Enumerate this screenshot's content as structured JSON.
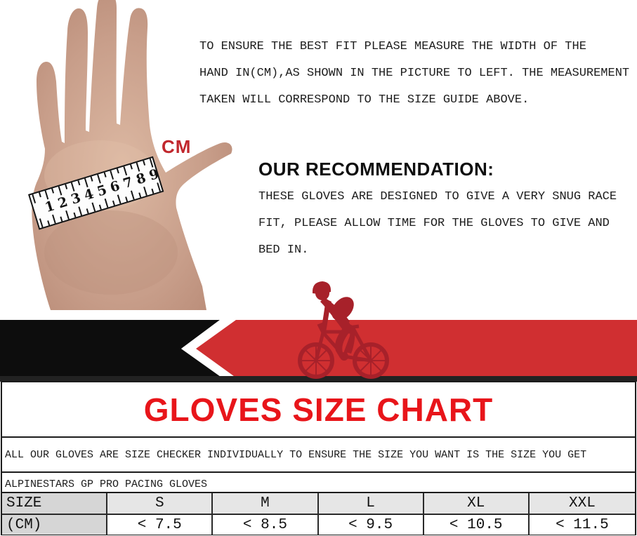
{
  "intro": {
    "lines": [
      "TO ENSURE THE BEST FIT PLEASE MEASURE THE WIDTH OF THE",
      "HAND IN(CM),AS SHOWN IN THE PICTURE TO LEFT. THE MEASUREMENT",
      "TAKEN WILL CORRESPOND TO THE SIZE GUIDE ABOVE."
    ]
  },
  "recommendation": {
    "heading": "OUR RECOMMENDATION:",
    "lines": [
      "THESE GLOVES ARE DESIGNED TO GIVE A VERY SNUG RACE",
      "FIT, PLEASE ALLOW TIME FOR THE GLOVES TO GIVE AND",
      "BED IN."
    ]
  },
  "hand": {
    "cm_label": "CM",
    "ruler_numbers": [
      "1",
      "2",
      "3",
      "4",
      "5",
      "6",
      "7",
      "8",
      "9"
    ]
  },
  "banner": {
    "colors": {
      "black": "#0d0d0d",
      "red": "#d02f31",
      "cyclist_red": "#a7212a",
      "stripe_white": "#ffffff",
      "bottom_strip": "#222222"
    }
  },
  "size_chart": {
    "title": "GLOVES SIZE CHART",
    "title_color": "#e8151a",
    "cm_label_color": "#c1272d",
    "note": "ALL  OUR GLOVES ARE SIZE CHECKER INDIVIDUALLY TO ENSURE THE SIZE YOU WANT IS THE SIZE YOU GET",
    "product": "ALPINESTARS GP PRO PACING GLOVES",
    "table": {
      "row_labels": [
        "SIZE",
        "(CM)"
      ],
      "size_headers": [
        "S",
        "M",
        "L",
        "XL",
        "XXL"
      ],
      "cm_values": [
        "< 7.5",
        "< 8.5",
        "< 9.5",
        "< 10.5",
        "< 11.5"
      ],
      "header_bg": "#e6e6e6",
      "label_bg": "#d6d6d6"
    }
  }
}
